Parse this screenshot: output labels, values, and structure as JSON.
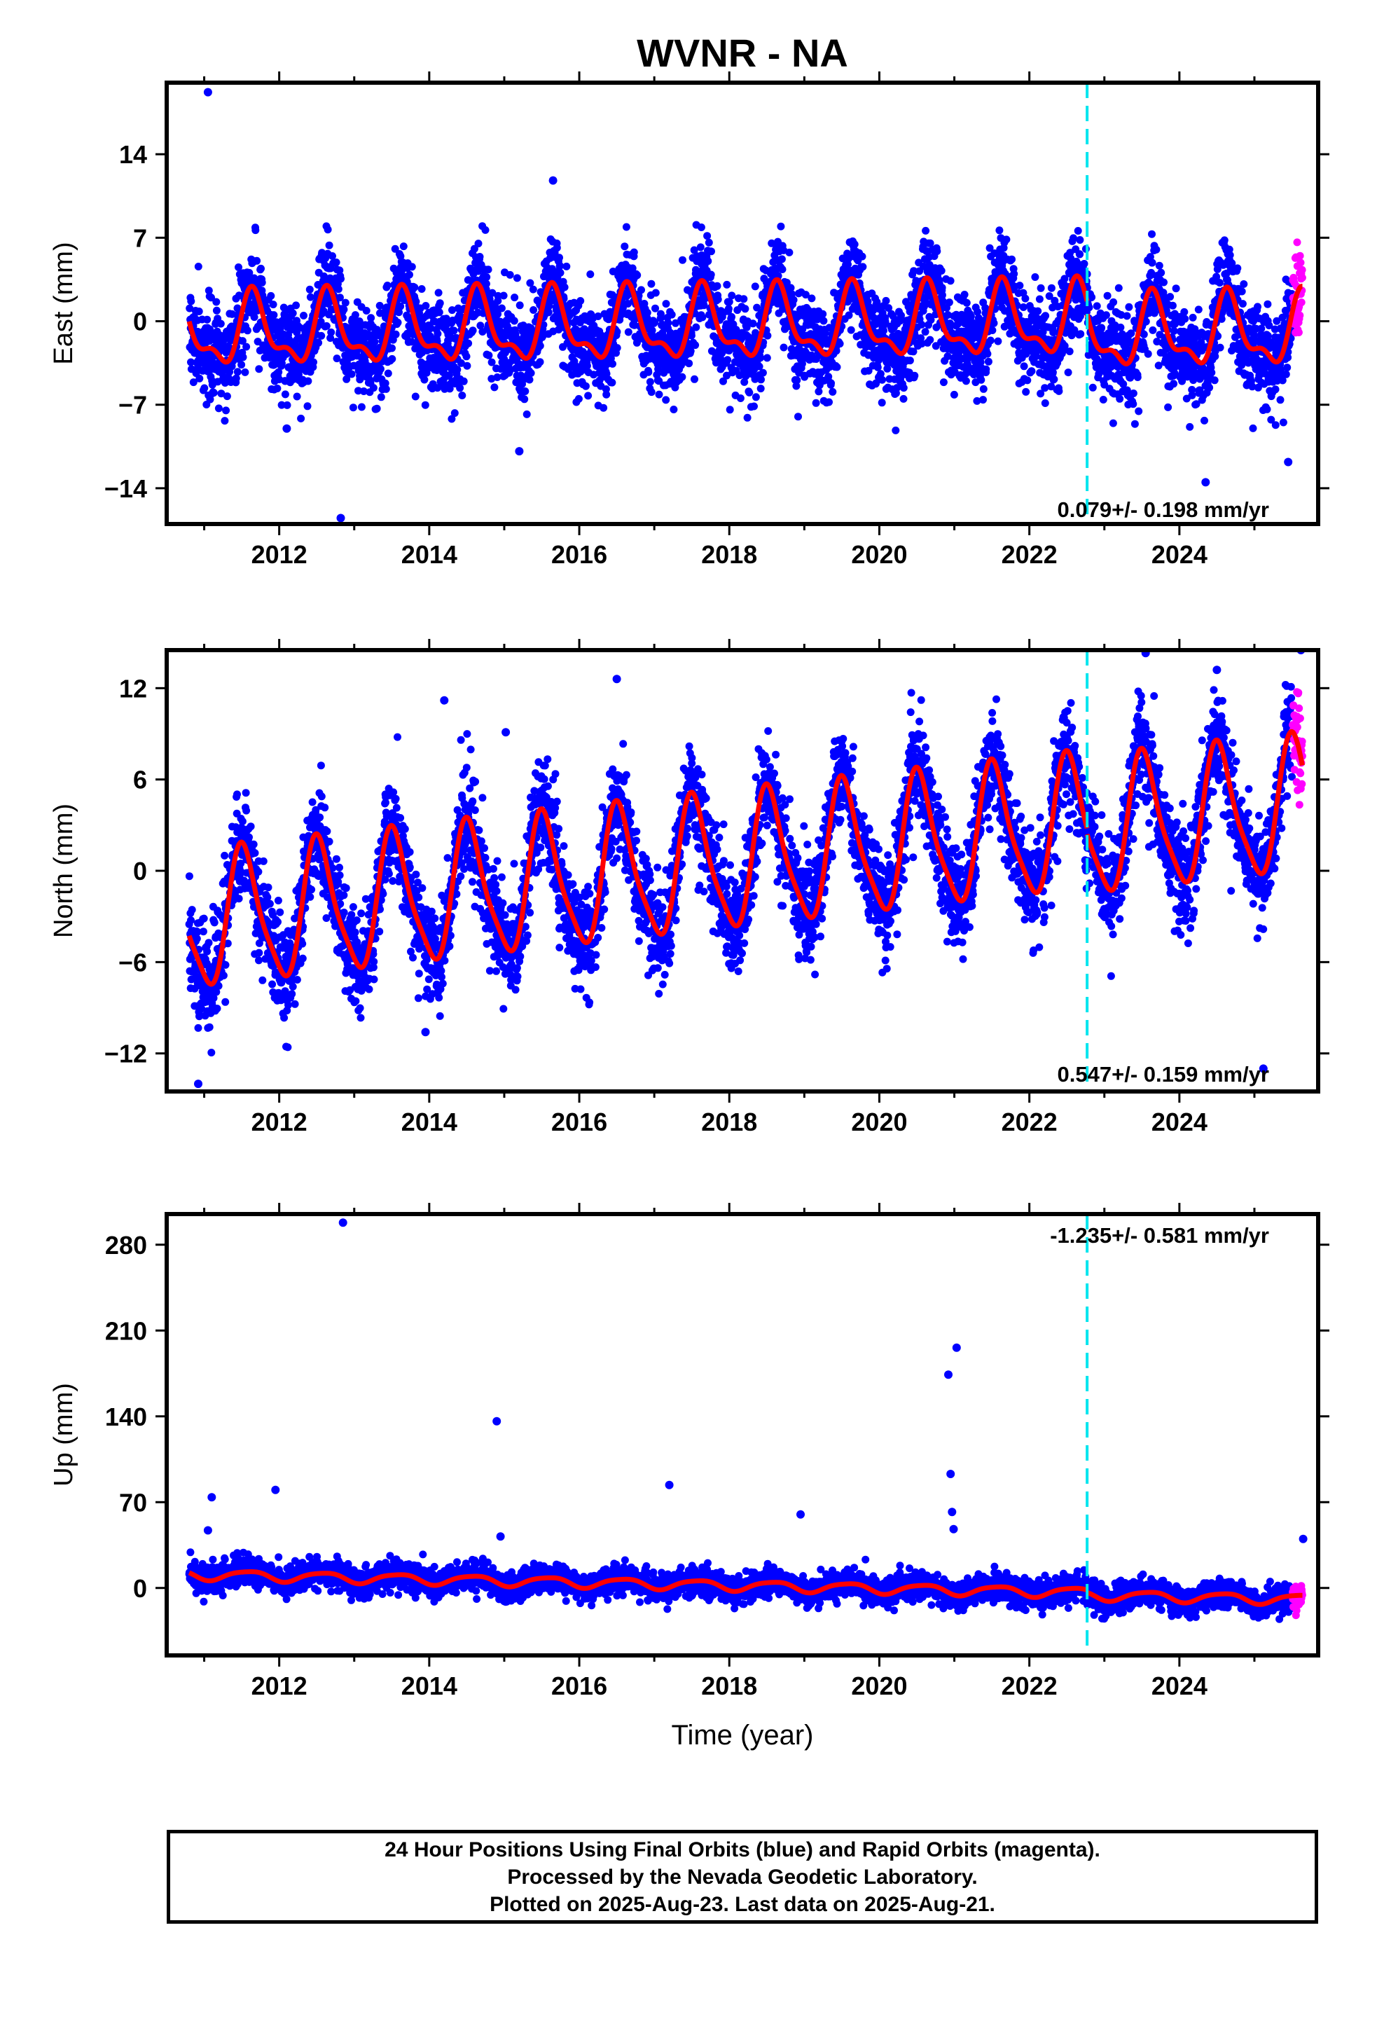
{
  "title": "WVNR - NA",
  "colors": {
    "final_orbits": "#0000ff",
    "rapid_orbits": "#ff00ff",
    "model_fit": "#ff0000",
    "equipment_change": "#00e5ee",
    "frame": "#000000"
  },
  "chart_data": [
    {
      "type": "scatter",
      "panel": "east",
      "ylabel": "East (mm)",
      "xlabel": "",
      "xlim": [
        2010.5,
        2025.85
      ],
      "ylim": [
        -17,
        20
      ],
      "xticks": [
        2012,
        2014,
        2016,
        2018,
        2020,
        2022,
        2024
      ],
      "xtick_labels": [
        "2012",
        "2014",
        "2016",
        "2018",
        "2020",
        "2022",
        "2024"
      ],
      "yticks": [
        -14,
        -7,
        0,
        7,
        14
      ],
      "ytick_labels": [
        "−14",
        "−7",
        "0",
        "7",
        "14"
      ],
      "velocity_label": "0.079+/- 0.198 mm/yr",
      "equipment_change_year": 2022.77,
      "data_start": 2010.8,
      "final_end": 2025.5,
      "rapid_end": 2025.64,
      "model": {
        "segments": [
          {
            "start": 2010.8,
            "end": 2022.77,
            "offset": -0.5,
            "trend": 0.079,
            "ref": 2016.8,
            "a1": 2.7,
            "p1": 0.66,
            "a2": 1.2,
            "p2": 0.62
          },
          {
            "start": 2022.77,
            "end": 2025.64,
            "offset": -1.6,
            "trend": 0.079,
            "ref": 2016.8,
            "a1": 2.7,
            "p1": 0.66,
            "a2": 1.2,
            "p2": 0.62
          }
        ]
      },
      "scatter_sigma": 1.9,
      "outliers": [
        [
          2011.05,
          19.2
        ],
        [
          2012.82,
          -16.5
        ],
        [
          2015.65,
          11.8
        ],
        [
          2015.2,
          -10.9
        ],
        [
          2024.35,
          -13.5
        ],
        [
          2025.45,
          -11.8
        ],
        [
          2012.1,
          -9.0
        ]
      ]
    },
    {
      "type": "scatter",
      "panel": "north",
      "ylabel": "North (mm)",
      "xlabel": "",
      "xlim": [
        2010.5,
        2025.85
      ],
      "ylim": [
        -14.5,
        14.5
      ],
      "xticks": [
        2012,
        2014,
        2016,
        2018,
        2020,
        2022,
        2024
      ],
      "xtick_labels": [
        "2012",
        "2014",
        "2016",
        "2018",
        "2020",
        "2022",
        "2024"
      ],
      "yticks": [
        -12,
        -6,
        0,
        6,
        12
      ],
      "ytick_labels": [
        "−12",
        "−6",
        "0",
        "6",
        "12"
      ],
      "velocity_label": "0.547+/- 0.159 mm/yr",
      "equipment_change_year": 2022.77,
      "data_start": 2010.8,
      "final_end": 2025.5,
      "rapid_end": 2025.64,
      "model": {
        "segments": [
          {
            "start": 2010.8,
            "end": 2022.77,
            "offset": 0.6,
            "trend": 0.547,
            "ref": 2018.2,
            "a1": 4.3,
            "p1": 0.53,
            "a2": 0.9,
            "p2": 0.45
          },
          {
            "start": 2022.77,
            "end": 2025.64,
            "offset": 0.2,
            "trend": 0.547,
            "ref": 2018.2,
            "a1": 4.3,
            "p1": 0.53,
            "a2": 0.9,
            "p2": 0.45
          }
        ]
      },
      "scatter_sigma": 1.6,
      "outliers": [
        [
          2010.92,
          -14.0
        ],
        [
          2013.95,
          -10.6
        ],
        [
          2014.2,
          11.2
        ],
        [
          2015.02,
          9.1
        ],
        [
          2016.5,
          12.6
        ],
        [
          2023.55,
          14.3
        ],
        [
          2024.5,
          13.2
        ],
        [
          2025.12,
          -13.0
        ],
        [
          2025.62,
          14.5
        ]
      ]
    },
    {
      "type": "scatter",
      "panel": "up",
      "ylabel": "Up (mm)",
      "xlabel": "Time (year)",
      "xlim": [
        2010.5,
        2025.85
      ],
      "ylim": [
        -55,
        305
      ],
      "xticks": [
        2012,
        2014,
        2016,
        2018,
        2020,
        2022,
        2024
      ],
      "xtick_labels": [
        "2012",
        "2014",
        "2016",
        "2018",
        "2020",
        "2022",
        "2024"
      ],
      "yticks": [
        0,
        70,
        140,
        210,
        280
      ],
      "ytick_labels": [
        "0",
        "70",
        "140",
        "210",
        "280"
      ],
      "velocity_label": "-1.235+/- 0.581 mm/yr",
      "equipment_change_year": 2022.77,
      "data_start": 2010.8,
      "final_end": 2025.5,
      "rapid_end": 2025.64,
      "model": {
        "segments": [
          {
            "start": 2010.8,
            "end": 2022.77,
            "offset": 4.5,
            "trend": -1.235,
            "ref": 2016.0,
            "a1": 4.0,
            "p1": 0.58,
            "a2": 0.8,
            "p2": 0.3
          },
          {
            "start": 2022.77,
            "end": 2025.64,
            "offset": 2.5,
            "trend": -1.235,
            "ref": 2016.0,
            "a1": 4.0,
            "p1": 0.58,
            "a2": 0.8,
            "p2": 0.3
          }
        ]
      },
      "scatter_sigma": 5.5,
      "outliers": [
        [
          2012.85,
          298
        ],
        [
          2014.9,
          136
        ],
        [
          2020.92,
          174
        ],
        [
          2021.03,
          196
        ],
        [
          2020.95,
          93
        ],
        [
          2011.1,
          74
        ],
        [
          2011.95,
          80
        ],
        [
          2017.2,
          84
        ],
        [
          2018.95,
          60
        ],
        [
          2020.97,
          62
        ],
        [
          2020.99,
          48
        ],
        [
          2014.95,
          42
        ],
        [
          2011.05,
          47
        ],
        [
          2025.65,
          40
        ]
      ]
    }
  ],
  "footer": {
    "line1": "24 Hour Positions Using Final Orbits (blue) and Rapid Orbits (magenta).",
    "line2": "Processed by the Nevada Geodetic Laboratory.",
    "line3": "Plotted on 2025-Aug-23. Last data on 2025-Aug-21."
  }
}
